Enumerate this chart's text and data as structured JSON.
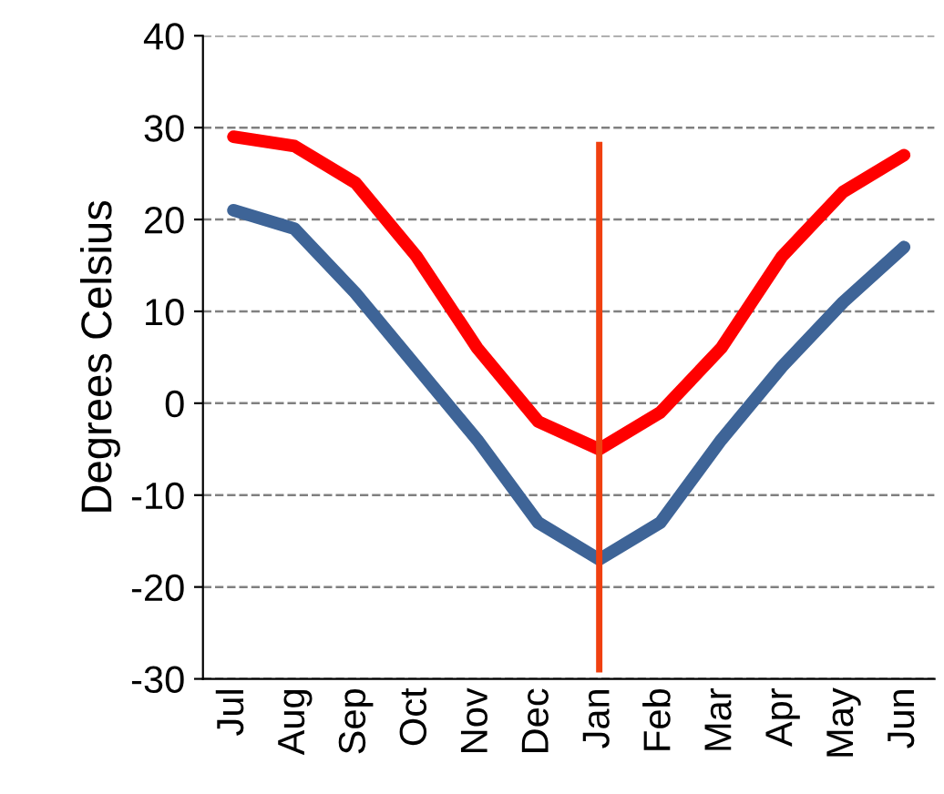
{
  "chart_data": {
    "type": "line",
    "ylabel": "Degrees Celsius",
    "categories": [
      "Jul",
      "Aug",
      "Sep",
      "Oct",
      "Nov",
      "Dec",
      "Jan",
      "Feb",
      "Mar",
      "Apr",
      "May",
      "Jun"
    ],
    "series": [
      {
        "color": "#ff0000",
        "values": [
          29,
          28,
          24,
          16,
          6,
          -2,
          -5,
          -1,
          6,
          16,
          23,
          27
        ]
      },
      {
        "color": "#3e6497",
        "values": [
          21,
          19,
          12,
          4,
          -4,
          -13,
          -17,
          -13,
          -4,
          4,
          11,
          17
        ]
      }
    ],
    "ylim": [
      -30,
      40
    ],
    "yticks": [
      -30,
      -20,
      -10,
      0,
      10,
      20,
      30,
      40
    ],
    "grid": "y",
    "line_style": "solid",
    "marker": "none",
    "ref_lines": [
      {
        "axis": "x",
        "value": "Jan",
        "color": "#f04010"
      }
    ]
  }
}
